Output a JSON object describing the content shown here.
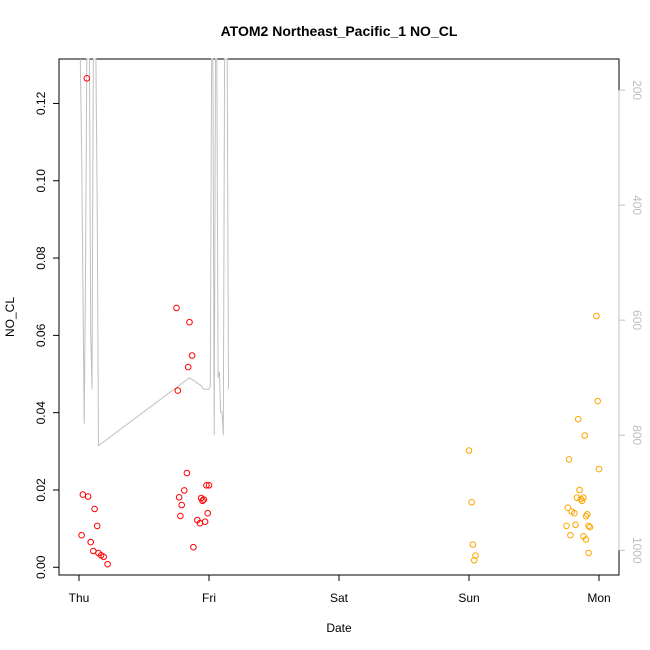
{
  "chart_data": {
    "type": "scatter",
    "title": "ATOM2 Northeast_Pacific_1 NO_CL",
    "xlabel": "Date",
    "ylabel": "NO_CL",
    "x_ticks": [
      "Thu",
      "Fri",
      "Sat",
      "Sun",
      "Mon"
    ],
    "y_ticks": [
      "0.00",
      "0.02",
      "0.04",
      "0.06",
      "0.08",
      "0.10",
      "0.12"
    ],
    "ylim": [
      -0.002,
      0.1315
    ],
    "y2_ticks": [
      "200",
      "400",
      "600",
      "800",
      "1000"
    ],
    "y2lim": [
      1043,
      146
    ],
    "colors": {
      "series_red": "#ff0000",
      "series_orange": "#ffa500",
      "altitude": "#c0c0c0",
      "axis": "#000000",
      "axis_right": "#c0c0c0"
    },
    "series": [
      {
        "color": "red",
        "points": [
          [
            0.03,
            0.0188
          ],
          [
            0.07,
            0.0183
          ],
          [
            0.12,
            0.0151
          ],
          [
            0.14,
            0.0107
          ],
          [
            0.09,
            0.0065
          ],
          [
            0.11,
            0.0042
          ],
          [
            0.15,
            0.0037
          ],
          [
            0.17,
            0.0031
          ],
          [
            0.19,
            0.0027
          ],
          [
            0.22,
            0.0008
          ],
          [
            0.02,
            0.0083
          ],
          [
            0.06,
            0.1265
          ],
          [
            0.75,
            0.0671
          ],
          [
            0.85,
            0.0634
          ],
          [
            0.87,
            0.0548
          ],
          [
            0.84,
            0.0518
          ],
          [
            0.76,
            0.0457
          ],
          [
            0.83,
            0.0244
          ],
          [
            0.77,
            0.0181
          ],
          [
            0.81,
            0.0199
          ],
          [
            0.79,
            0.0161
          ],
          [
            0.78,
            0.0133
          ],
          [
            0.91,
            0.0122
          ],
          [
            0.93,
            0.0114
          ],
          [
            0.94,
            0.0179
          ],
          [
            0.95,
            0.0172
          ],
          [
            0.96,
            0.0175
          ],
          [
            0.97,
            0.0118
          ],
          [
            0.98,
            0.0212
          ],
          [
            1.0,
            0.0212
          ],
          [
            0.99,
            0.014
          ],
          [
            0.88,
            0.0052
          ]
        ]
      },
      {
        "color": "orange",
        "points": [
          [
            3.0,
            0.0302
          ],
          [
            3.02,
            0.0168
          ],
          [
            3.03,
            0.0059
          ],
          [
            3.05,
            0.003
          ],
          [
            3.04,
            0.0018
          ],
          [
            3.77,
            0.0279
          ],
          [
            3.76,
            0.0154
          ],
          [
            3.79,
            0.0144
          ],
          [
            3.81,
            0.014
          ],
          [
            3.75,
            0.0107
          ],
          [
            3.78,
            0.0083
          ],
          [
            3.82,
            0.011
          ],
          [
            3.83,
            0.018
          ],
          [
            3.84,
            0.0383
          ],
          [
            3.85,
            0.02
          ],
          [
            3.86,
            0.0177
          ],
          [
            3.87,
            0.0172
          ],
          [
            3.88,
            0.018
          ],
          [
            3.89,
            0.0341
          ],
          [
            3.9,
            0.0132
          ],
          [
            3.91,
            0.0137
          ],
          [
            3.92,
            0.0107
          ],
          [
            3.93,
            0.0104
          ],
          [
            3.88,
            0.008
          ],
          [
            3.9,
            0.0072
          ],
          [
            3.92,
            0.0037
          ],
          [
            3.98,
            0.065
          ],
          [
            3.99,
            0.043
          ],
          [
            4.0,
            0.0254
          ]
        ]
      }
    ],
    "altitude_series": {
      "axis": "right",
      "points": [
        [
          0.01,
          146
        ],
        [
          0.02,
          300
        ],
        [
          0.04,
          780
        ],
        [
          0.05,
          520
        ],
        [
          0.06,
          146
        ],
        [
          0.07,
          146
        ],
        [
          0.08,
          146
        ],
        [
          0.09,
          620
        ],
        [
          0.1,
          720
        ],
        [
          0.11,
          146
        ],
        [
          0.12,
          146
        ],
        [
          0.13,
          146
        ],
        [
          0.14,
          400
        ],
        [
          0.15,
          818
        ],
        [
          0.85,
          700
        ],
        [
          0.94,
          714
        ],
        [
          0.95,
          718
        ],
        [
          0.96,
          720
        ],
        [
          0.97,
          720
        ],
        [
          0.98,
          720
        ],
        [
          0.99,
          720
        ],
        [
          1.0,
          720
        ],
        [
          1.01,
          715
        ],
        [
          1.02,
          146
        ],
        [
          1.03,
          146
        ],
        [
          1.04,
          800
        ],
        [
          1.05,
          146
        ],
        [
          1.06,
          146
        ],
        [
          1.07,
          700
        ],
        [
          1.08,
          690
        ],
        [
          1.09,
          760
        ],
        [
          1.1,
          760
        ],
        [
          1.11,
          800
        ],
        [
          1.12,
          146
        ],
        [
          1.13,
          146
        ],
        [
          1.14,
          146
        ],
        [
          1.15,
          720
        ]
      ]
    }
  }
}
